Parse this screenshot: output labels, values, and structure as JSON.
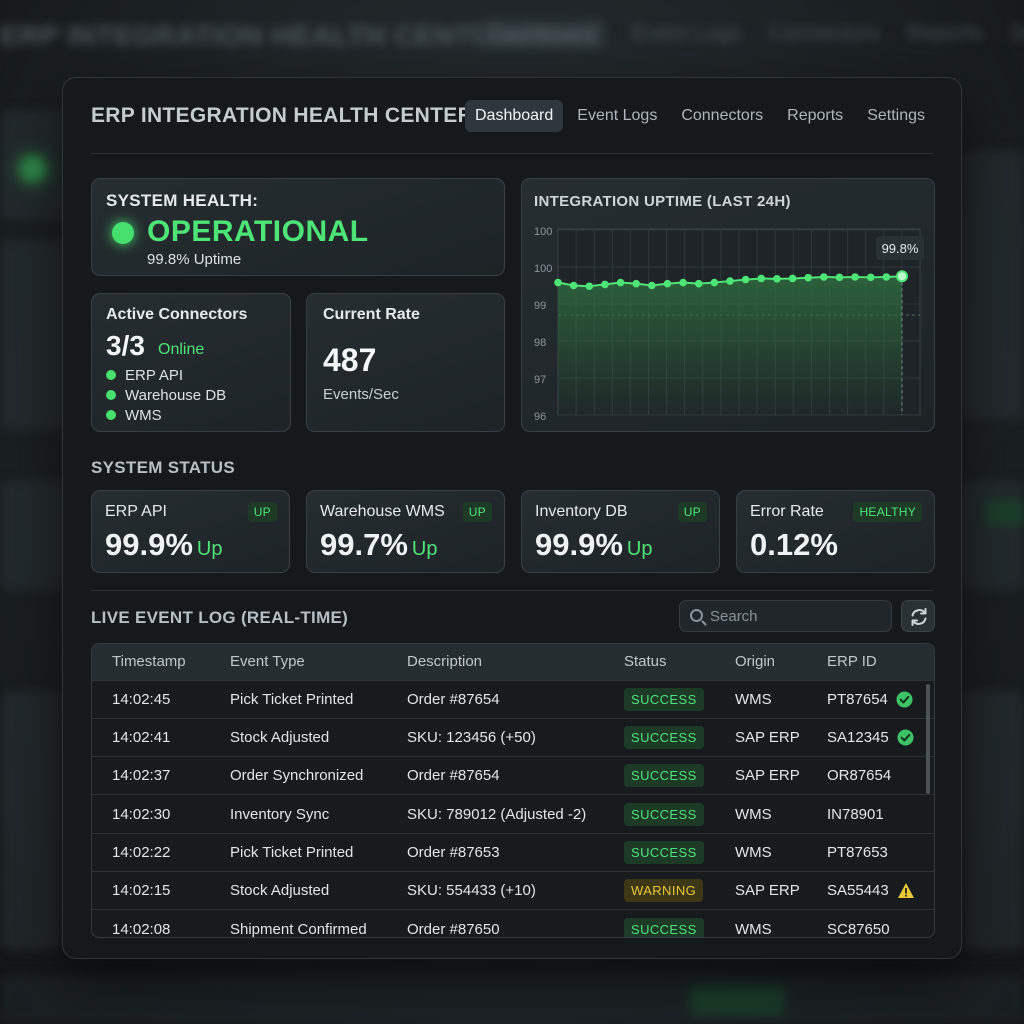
{
  "app": {
    "title": "ERP INTEGRATION HEALTH CENTER",
    "nav": [
      {
        "label": "Dashboard",
        "active": true
      },
      {
        "label": "Event Logs",
        "active": false
      },
      {
        "label": "Connectors",
        "active": false
      },
      {
        "label": "Reports",
        "active": false
      },
      {
        "label": "Settings",
        "active": false
      }
    ]
  },
  "health": {
    "label": "SYSTEM HEALTH:",
    "status": "OPERATIONAL",
    "uptime": "99.8% Uptime"
  },
  "connectors": {
    "label": "Active Connectors",
    "count": "3/3",
    "online_label": "Online",
    "items": [
      "ERP API",
      "Warehouse DB",
      "WMS"
    ]
  },
  "rate": {
    "label": "Current Rate",
    "value": "487",
    "unit": "Events/Sec"
  },
  "chart_data": {
    "type": "line",
    "title": "INTEGRATION UPTIME (LAST 24H)",
    "y_ticks": [
      "100",
      "100",
      "99",
      "98",
      "97",
      "96"
    ],
    "values": [
      99.58,
      99.5,
      99.48,
      99.53,
      99.58,
      99.55,
      99.5,
      99.55,
      99.58,
      99.55,
      99.58,
      99.62,
      99.66,
      99.69,
      99.68,
      99.69,
      99.71,
      99.73,
      99.72,
      99.73,
      99.72,
      99.73,
      99.75
    ],
    "last_label": "99.8%",
    "colors": {
      "line": "#4ee577",
      "fill": "#2e6b3f"
    }
  },
  "system_status": {
    "title": "SYSTEM STATUS",
    "cards": [
      {
        "name": "ERP API",
        "badge": "UP",
        "value": "99.9%",
        "suffix": "Up"
      },
      {
        "name": "Warehouse WMS",
        "badge": "UP",
        "value": "99.7%",
        "suffix": "Up"
      },
      {
        "name": "Inventory DB",
        "badge": "UP",
        "value": "99.9%",
        "suffix": "Up"
      },
      {
        "name": "Error Rate",
        "badge": "HEALTHY",
        "value": "0.12%",
        "suffix": ""
      }
    ]
  },
  "log": {
    "title": "LIVE EVENT LOG (REAL-TIME)",
    "search_placeholder": "Search",
    "columns": [
      "Timestamp",
      "Event Type",
      "Description",
      "Status",
      "Origin",
      "ERP ID"
    ],
    "rows": [
      {
        "time": "14:02:45",
        "type": "Pick Ticket Printed",
        "desc": "Order #87654",
        "status": "SUCCESS",
        "origin": "WMS",
        "erp_id": "PT87654",
        "mark": "check"
      },
      {
        "time": "14:02:41",
        "type": "Stock Adjusted",
        "desc": "SKU: 123456 (+50)",
        "status": "SUCCESS",
        "origin": "SAP ERP",
        "erp_id": "SA12345",
        "mark": "check"
      },
      {
        "time": "14:02:37",
        "type": "Order Synchronized",
        "desc": "Order #87654",
        "status": "SUCCESS",
        "origin": "SAP ERP",
        "erp_id": "OR87654",
        "mark": ""
      },
      {
        "time": "14:02:30",
        "type": "Inventory Sync",
        "desc": "SKU: 789012 (Adjusted -2)",
        "status": "SUCCESS",
        "origin": "WMS",
        "erp_id": "IN78901",
        "mark": ""
      },
      {
        "time": "14:02:22",
        "type": "Pick Ticket Printed",
        "desc": "Order #87653",
        "status": "SUCCESS",
        "origin": "WMS",
        "erp_id": "PT87653",
        "mark": ""
      },
      {
        "time": "14:02:15",
        "type": "Stock Adjusted",
        "desc": "SKU: 554433 (+10)",
        "status": "WARNING",
        "origin": "SAP ERP",
        "erp_id": "SA55443",
        "mark": "warning"
      },
      {
        "time": "14:02:08",
        "type": "Shipment Confirmed",
        "desc": "Order #87650",
        "status": "SUCCESS",
        "origin": "WMS",
        "erp_id": "SC87650",
        "mark": ""
      }
    ]
  },
  "background_echo": {
    "title": "ERP INTEGRATION HEALTH CENTER",
    "nav": [
      "Dashboard",
      "Event Logs",
      "Connectors",
      "Reports",
      "Settings"
    ]
  }
}
